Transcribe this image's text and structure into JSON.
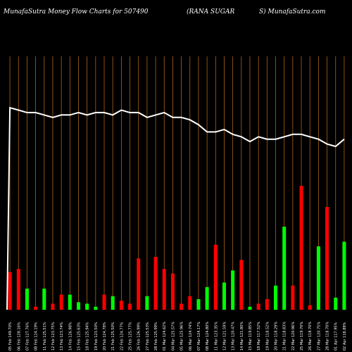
{
  "header": {
    "left": "MunafaSutra  Money Flow  Charts for 507490",
    "middle": "(RANA SUGAR",
    "right": "S) MunafaSutra.com"
  },
  "colors": {
    "background": "#000000",
    "gridline": "#b0641a",
    "up": "#00ff00",
    "down": "#ff0000",
    "line": "#ffffff",
    "text": "#ffffff"
  },
  "chart_data": {
    "type": "bar",
    "description_of_series": "money flow bars with price line overlay",
    "categories": [
      "1",
      "2",
      "3",
      "4",
      "5",
      "6",
      "7",
      "8",
      "9",
      "10",
      "11",
      "12",
      "13",
      "14",
      "15",
      "16",
      "17",
      "18",
      "19",
      "20",
      "21",
      "22",
      "23",
      "24",
      "25",
      "26",
      "27",
      "28",
      "29",
      "30",
      "31",
      "32",
      "33",
      "34",
      "35",
      "36",
      "37",
      "38",
      "39",
      "40",
      "41",
      "42",
      "43",
      "44",
      "45"
    ],
    "x_tick_labels": [
      "05 Feb 149.70%",
      "06 Feb 128.16%",
      "07 Feb 127.76%",
      "08 Feb 124.19%",
      "11 Feb 125.51%",
      "12 Feb 123.75%",
      "13 Feb 123.74%",
      "14 Feb 126.98%",
      "15 Feb 125.63%",
      "18 Feb 125.94%",
      "19 Feb 123.50%",
      "20 Feb 124.78%",
      "21 Feb 125.50%",
      "22 Feb 124.77%",
      "25 Feb 125.77%",
      "26 Feb 126.99%",
      "27 Feb 125.53%",
      "28 Feb 125.99%",
      "01 Mar 124.62%",
      "04 Mar 125.57%",
      "05 Mar 125.96%",
      "06 Mar 124.74%",
      "07 Mar 124.17%",
      "08 Mar 124.80%",
      "11 Mar 123.35%",
      "12 Mar 121.59%",
      "13 Mar 120.47%",
      "14 Mar 121.80%",
      "15 Mar 119.85%",
      "18 Mar 117.52%",
      "19 Mar 118.52%",
      "20 Mar 118.29%",
      "21 Mar 118.83%",
      "22 Mar 120.96%",
      "25 Mar 119.70%",
      "26 Mar 118.70%",
      "27 Mar 120.75%",
      "28 Mar 118.70%",
      "01 Apr 117.95%",
      "02 Apr 118.89%",
      "03 Apr 117.02%",
      "04 Apr 116.02%",
      "05 Apr",
      "08 Apr 6.77%",
      "09 Apr 119.70%"
    ],
    "bars": [
      {
        "value": 25,
        "dir": "down"
      },
      {
        "value": 27,
        "dir": "down"
      },
      {
        "value": 14,
        "dir": "up"
      },
      {
        "value": 2,
        "dir": "down"
      },
      {
        "value": 14,
        "dir": "up"
      },
      {
        "value": 4,
        "dir": "down"
      },
      {
        "value": 10,
        "dir": "down"
      },
      {
        "value": 10,
        "dir": "up"
      },
      {
        "value": 5,
        "dir": "up"
      },
      {
        "value": 4,
        "dir": "up"
      },
      {
        "value": 2,
        "dir": "up"
      },
      {
        "value": 10,
        "dir": "down"
      },
      {
        "value": 9,
        "dir": "up"
      },
      {
        "value": 6,
        "dir": "down"
      },
      {
        "value": 4,
        "dir": "down"
      },
      {
        "value": 34,
        "dir": "down"
      },
      {
        "value": 9,
        "dir": "up"
      },
      {
        "value": 35,
        "dir": "down"
      },
      {
        "value": 27,
        "dir": "down"
      },
      {
        "value": 24,
        "dir": "down"
      },
      {
        "value": 4,
        "dir": "down"
      },
      {
        "value": 9,
        "dir": "down"
      },
      {
        "value": 7,
        "dir": "up"
      },
      {
        "value": 15,
        "dir": "up"
      },
      {
        "value": 43,
        "dir": "down"
      },
      {
        "value": 18,
        "dir": "up"
      },
      {
        "value": 26,
        "dir": "up"
      },
      {
        "value": 33,
        "dir": "down"
      },
      {
        "value": 2,
        "dir": "up"
      },
      {
        "value": 4,
        "dir": "down"
      },
      {
        "value": 7,
        "dir": "down"
      },
      {
        "value": 16,
        "dir": "up"
      },
      {
        "value": 55,
        "dir": "up"
      },
      {
        "value": 16,
        "dir": "down"
      },
      {
        "value": 82,
        "dir": "down"
      },
      {
        "value": 3,
        "dir": "down"
      },
      {
        "value": 42,
        "dir": "up"
      },
      {
        "value": 68,
        "dir": "down"
      },
      {
        "value": 8,
        "dir": "up"
      },
      {
        "value": 45,
        "dir": "up"
      }
    ],
    "price_line": [
      100,
      99,
      98,
      98,
      97,
      96,
      97,
      97,
      98,
      97,
      98,
      98,
      97,
      99,
      98,
      98,
      96,
      97,
      98,
      96,
      96,
      95,
      93,
      90,
      90,
      91,
      89,
      88,
      86,
      88,
      87,
      87,
      88,
      89,
      89,
      88,
      87,
      85,
      84,
      87
    ],
    "price_line_start": 5,
    "ylim_bars": [
      0,
      82
    ],
    "ylim_line": [
      0,
      100
    ]
  }
}
